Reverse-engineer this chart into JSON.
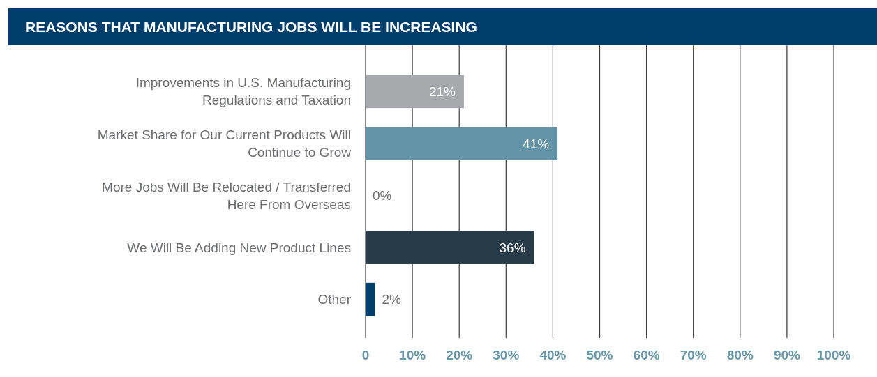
{
  "chart_data": {
    "type": "bar",
    "orientation": "horizontal",
    "title": "REASONS THAT MANUFACTURING JOBS WILL BE INCREASING",
    "categories": [
      "Improvements in U.S. Manufacturing Regulations and Taxation",
      "Market Share for Our Current Products Will Continue to Grow",
      "More Jobs Will Be Relocated / Transferred Here From Overseas",
      "We Will Be Adding New Product Lines",
      "Other"
    ],
    "values": [
      21,
      41,
      0,
      36,
      2
    ],
    "colors": [
      "#a7a9ac",
      "#6393a6",
      "#6393a6",
      "#283b48",
      "#003f6b"
    ],
    "value_labels": [
      "21%",
      "41%",
      "0%",
      "36%",
      "2%"
    ],
    "xlim": [
      0,
      100
    ],
    "xticks": [
      {
        "value": 0,
        "label": "0"
      },
      {
        "value": 10,
        "label": "10%"
      },
      {
        "value": 20,
        "label": "20%"
      },
      {
        "value": 30,
        "label": "30%"
      },
      {
        "value": 40,
        "label": "40%"
      },
      {
        "value": 50,
        "label": "50%"
      },
      {
        "value": 60,
        "label": "60%"
      },
      {
        "value": 70,
        "label": "70%"
      },
      {
        "value": 80,
        "label": "80%"
      },
      {
        "value": 90,
        "label": "90%"
      },
      {
        "value": 100,
        "label": "100%"
      }
    ],
    "grid": "x"
  }
}
